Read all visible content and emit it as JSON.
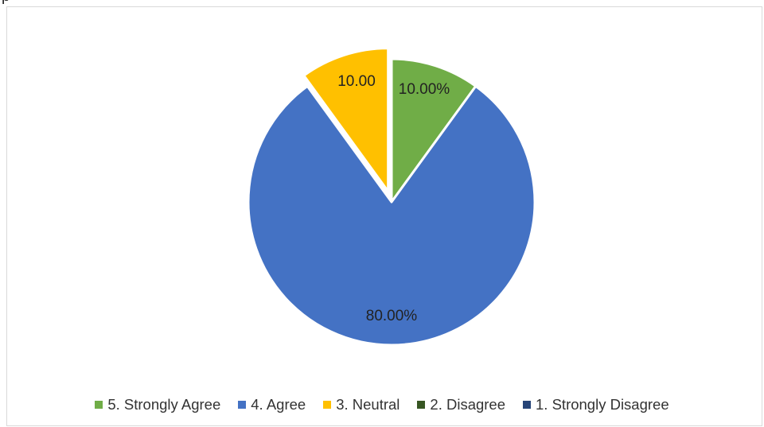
{
  "cut_text": "p",
  "chart_data": {
    "type": "pie",
    "title": "",
    "slices": [
      {
        "label": "5. Strongly Agree",
        "value": 10.0,
        "data_label": "10.00%",
        "color": "#70ad47",
        "exploded": false
      },
      {
        "label": "4. Agree",
        "value": 80.0,
        "data_label": "80.00%",
        "color": "#4472c4",
        "exploded": false
      },
      {
        "label": "3. Neutral",
        "value": 10.0,
        "data_label": "10.00",
        "color": "#ffc000",
        "exploded": true
      },
      {
        "label": "2. Disagree",
        "value": 0,
        "data_label": "",
        "color": "#375623",
        "exploded": false
      },
      {
        "label": "1. Strongly Disagree",
        "value": 0,
        "data_label": "",
        "color": "#264478",
        "exploded": false
      }
    ],
    "legend_position": "bottom",
    "grid": false
  }
}
